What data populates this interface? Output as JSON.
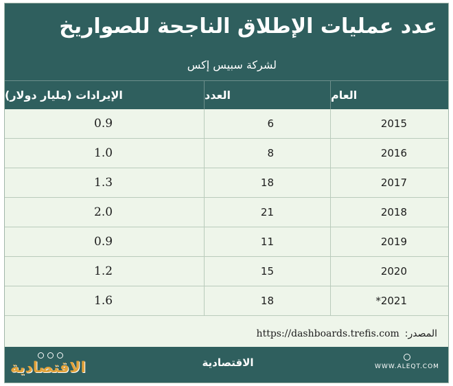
{
  "header": {
    "title": "عدد عمليات الإطلاق الناجحة للصواريخ",
    "subtitle": "لشركة سبيس إكس"
  },
  "columns": {
    "year": "العام",
    "count": "العدد",
    "revenue": "الإيرادات (مليار دولار)"
  },
  "chart_data": {
    "type": "table",
    "title": "عدد عمليات الإطلاق الناجحة للصواريخ",
    "subtitle": "لشركة سبيس إكس",
    "columns": [
      "العام",
      "العدد",
      "الإيرادات (مليار دولار)"
    ],
    "rows": [
      {
        "year": "2015",
        "count": "6",
        "revenue": "0.9"
      },
      {
        "year": "2016",
        "count": "8",
        "revenue": "1.0"
      },
      {
        "year": "2017",
        "count": "18",
        "revenue": "1.3"
      },
      {
        "year": "2018",
        "count": "21",
        "revenue": "2.0"
      },
      {
        "year": "2019",
        "count": "11",
        "revenue": "0.9"
      },
      {
        "year": "2020",
        "count": "15",
        "revenue": "1.2"
      },
      {
        "year": "*2021",
        "count": "18",
        "revenue": "1.6"
      }
    ]
  },
  "source": {
    "label": "المصدر:",
    "url": "https://dashboards.trefis.com"
  },
  "footer": {
    "site": "WWW.ALEQT.COM",
    "center_logo": "الاقتصادية",
    "brand_logo": "الاقتصادية"
  },
  "colors": {
    "header_bg": "#2f5f5e",
    "body_bg": "#eef5ea",
    "brand_accent": "#e3a33a"
  }
}
